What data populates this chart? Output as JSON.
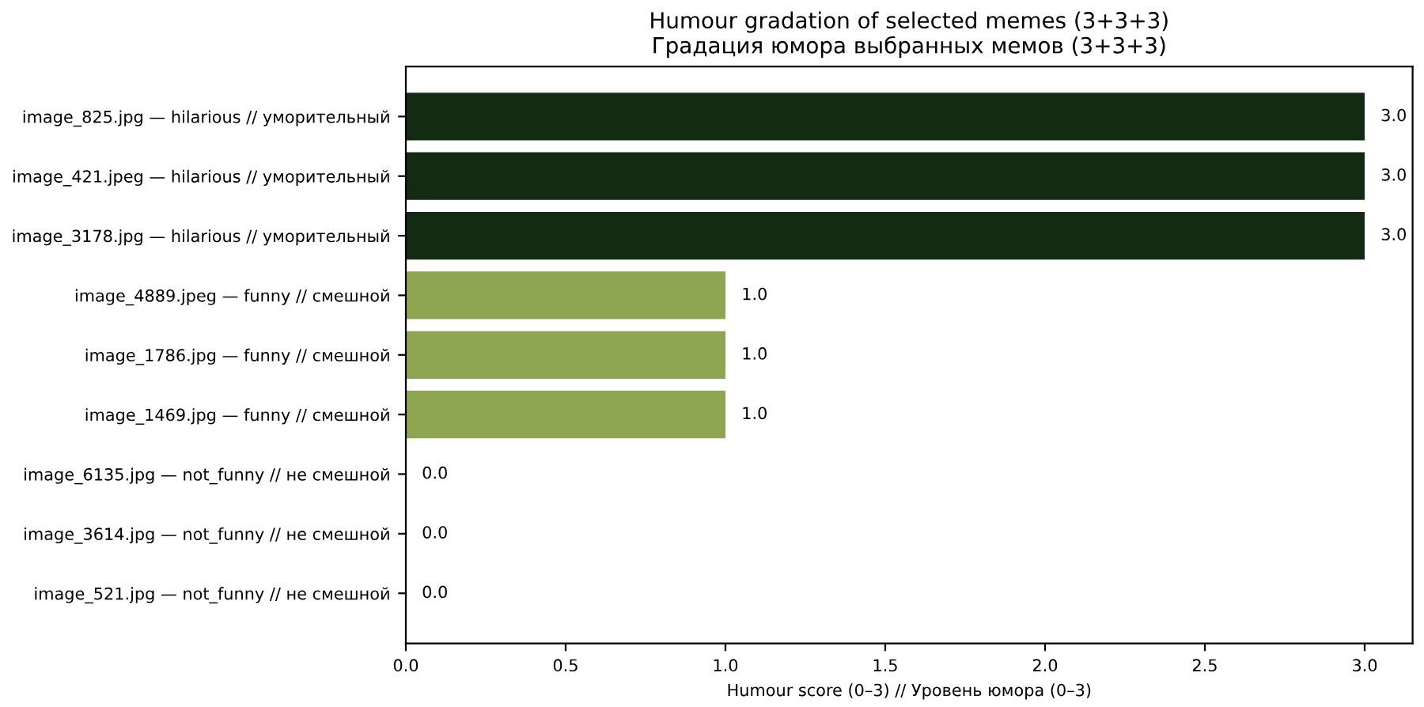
{
  "chart_data": {
    "type": "bar",
    "orientation": "horizontal",
    "title": "Humour gradation of selected memes (3+3+3)\nГрадация юмора выбранных мемов (3+3+3)",
    "xlabel": "Humour score (0–3) // Уровень юмора (0–3)",
    "categories": [
      "image_825.jpg — hilarious // уморительный",
      "image_421.jpeg — hilarious // уморительный",
      "image_3178.jpg — hilarious // уморительный",
      "image_4889.jpeg — funny // смешной",
      "image_1786.jpg — funny // смешной",
      "image_1469.jpg — funny // смешной",
      "image_6135.jpg — not_funny // не смешной",
      "image_3614.jpg — not_funny // не смешной",
      "image_521.jpg — not_funny // не смешной"
    ],
    "values": [
      3,
      3,
      3,
      1,
      1,
      1,
      0,
      0,
      0
    ],
    "colors": [
      "#132a13",
      "#132a13",
      "#132a13",
      "#8ea651",
      "#8ea651",
      "#8ea651",
      "#8ea651",
      "#8ea651",
      "#8ea651"
    ],
    "value_labels": [
      "3.0",
      "3.0",
      "3.0",
      "1.0",
      "1.0",
      "1.0",
      "0.0",
      "0.0",
      "0.0"
    ],
    "xlim": [
      0,
      3.15
    ],
    "xticks": [
      {
        "value": 0,
        "label": "0.0"
      },
      {
        "value": 0.5,
        "label": "0.5"
      },
      {
        "value": 1,
        "label": "1.0"
      },
      {
        "value": 1.5,
        "label": "1.5"
      },
      {
        "value": 2,
        "label": "2.0"
      },
      {
        "value": 2.5,
        "label": "2.5"
      },
      {
        "value": 3,
        "label": "3.0"
      }
    ],
    "grid": false
  }
}
